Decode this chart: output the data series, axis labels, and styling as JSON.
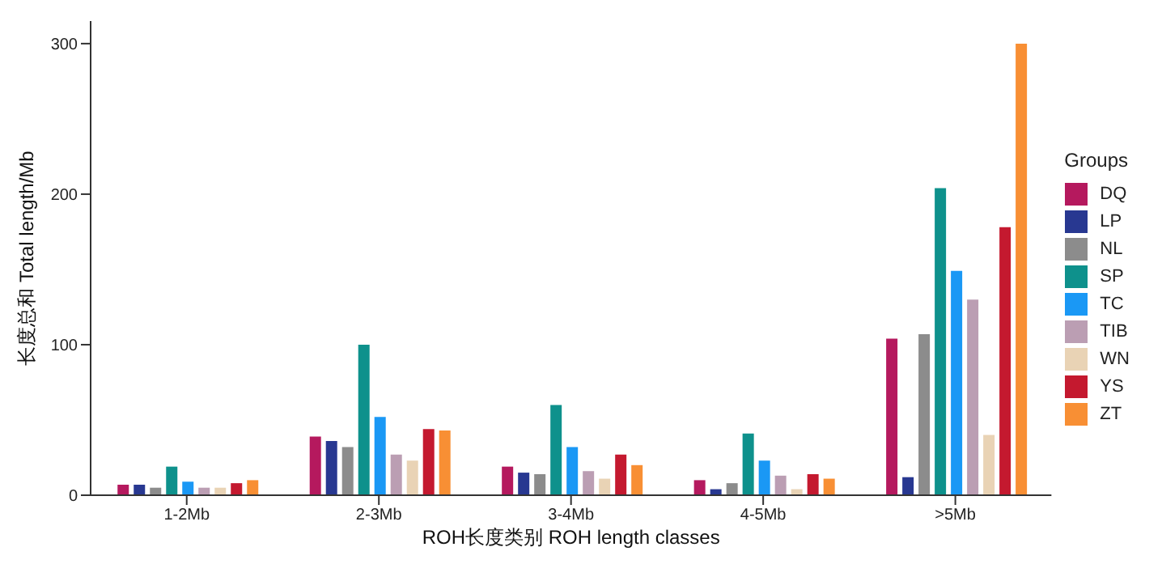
{
  "chart_data": {
    "type": "bar",
    "xlabel": "ROH长度类别 ROH length classes",
    "ylabel": "长度总和 Total length/Mb",
    "legend_title": "Groups",
    "legend": "right",
    "grid": false,
    "categories": [
      "1-2Mb",
      "2-3Mb",
      "3-4Mb",
      "4-5Mb",
      ">5Mb"
    ],
    "ylim": [
      0,
      315
    ],
    "yticks": [
      0,
      100,
      200,
      300
    ],
    "series": [
      {
        "name": "DQ",
        "color": "#b5195e",
        "values": [
          7,
          39,
          19,
          10,
          104
        ]
      },
      {
        "name": "LP",
        "color": "#283891",
        "values": [
          7,
          36,
          15,
          4,
          12
        ]
      },
      {
        "name": "NL",
        "color": "#8c8c8c",
        "values": [
          5,
          32,
          14,
          8,
          107
        ]
      },
      {
        "name": "SP",
        "color": "#0e918c",
        "values": [
          19,
          100,
          60,
          41,
          204
        ]
      },
      {
        "name": "TC",
        "color": "#1a98f5",
        "values": [
          9,
          52,
          32,
          23,
          149
        ]
      },
      {
        "name": "TIB",
        "color": "#bb9eb3",
        "values": [
          5,
          27,
          16,
          13,
          130
        ]
      },
      {
        "name": "WN",
        "color": "#e9d3b5",
        "values": [
          5,
          23,
          11,
          4,
          40
        ]
      },
      {
        "name": "YS",
        "color": "#c4192f",
        "values": [
          8,
          44,
          27,
          14,
          178
        ]
      },
      {
        "name": "ZT",
        "color": "#f88f34",
        "values": [
          10,
          43,
          20,
          11,
          300
        ]
      }
    ]
  }
}
